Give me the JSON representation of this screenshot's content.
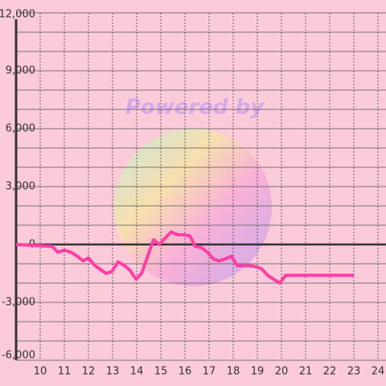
{
  "chart_data": {
    "type": "line",
    "watermark": "Powered by",
    "x": [
      9,
      10.5,
      10.73,
      11,
      11.27,
      11.53,
      11.77,
      12,
      12.27,
      12.5,
      12.73,
      12.97,
      13.23,
      13.5,
      13.73,
      13.97,
      14.2,
      14.43,
      14.7,
      14.93,
      15.2,
      15.43,
      15.7,
      15.93,
      16.2,
      16.43,
      16.67,
      16.93,
      17.17,
      17.4,
      17.67,
      17.93,
      18.17,
      18.43,
      18.67,
      18.93,
      19.17,
      19.43,
      19.67,
      19.93,
      20.17,
      23
    ],
    "series": [
      {
        "color": "#ff3ea5",
        "values": [
          0,
          -100,
          -400,
          -300,
          -400,
          -600,
          -850,
          -700,
          -1100,
          -1300,
          -1500,
          -1400,
          -900,
          -1100,
          -1350,
          -1800,
          -1500,
          -700,
          250,
          0,
          350,
          650,
          500,
          500,
          450,
          -100,
          -150,
          -400,
          -750,
          -850,
          -750,
          -600,
          -1100,
          -1100,
          -1100,
          -1150,
          -1250,
          -1600,
          -1800,
          -2000,
          -1600,
          -1600
        ]
      }
    ],
    "xlim": [
      9,
      24.333
    ],
    "xticks": [
      10,
      11,
      12,
      13,
      14,
      15,
      16,
      17,
      18,
      19,
      20,
      21,
      22,
      23,
      24
    ],
    "ylim": [
      -6000,
      12000
    ],
    "yticks": [
      {
        "value": -6000,
        "label": "-6,000"
      },
      {
        "value": -3000,
        "label": "-3,000"
      },
      0,
      {
        "value": 3000,
        "label": "3,000"
      },
      {
        "value": 6000,
        "label": "6,000"
      },
      {
        "value": 9000,
        "label": "9,000"
      },
      {
        "value": 12000,
        "label": "12,000"
      }
    ],
    "y_minor_grid": [
      -5000,
      -4000,
      -2000,
      -1000,
      1000,
      2000,
      4000,
      5000,
      7000,
      8000,
      10000,
      11000
    ],
    "background": "#fccbd9",
    "grid": true
  }
}
